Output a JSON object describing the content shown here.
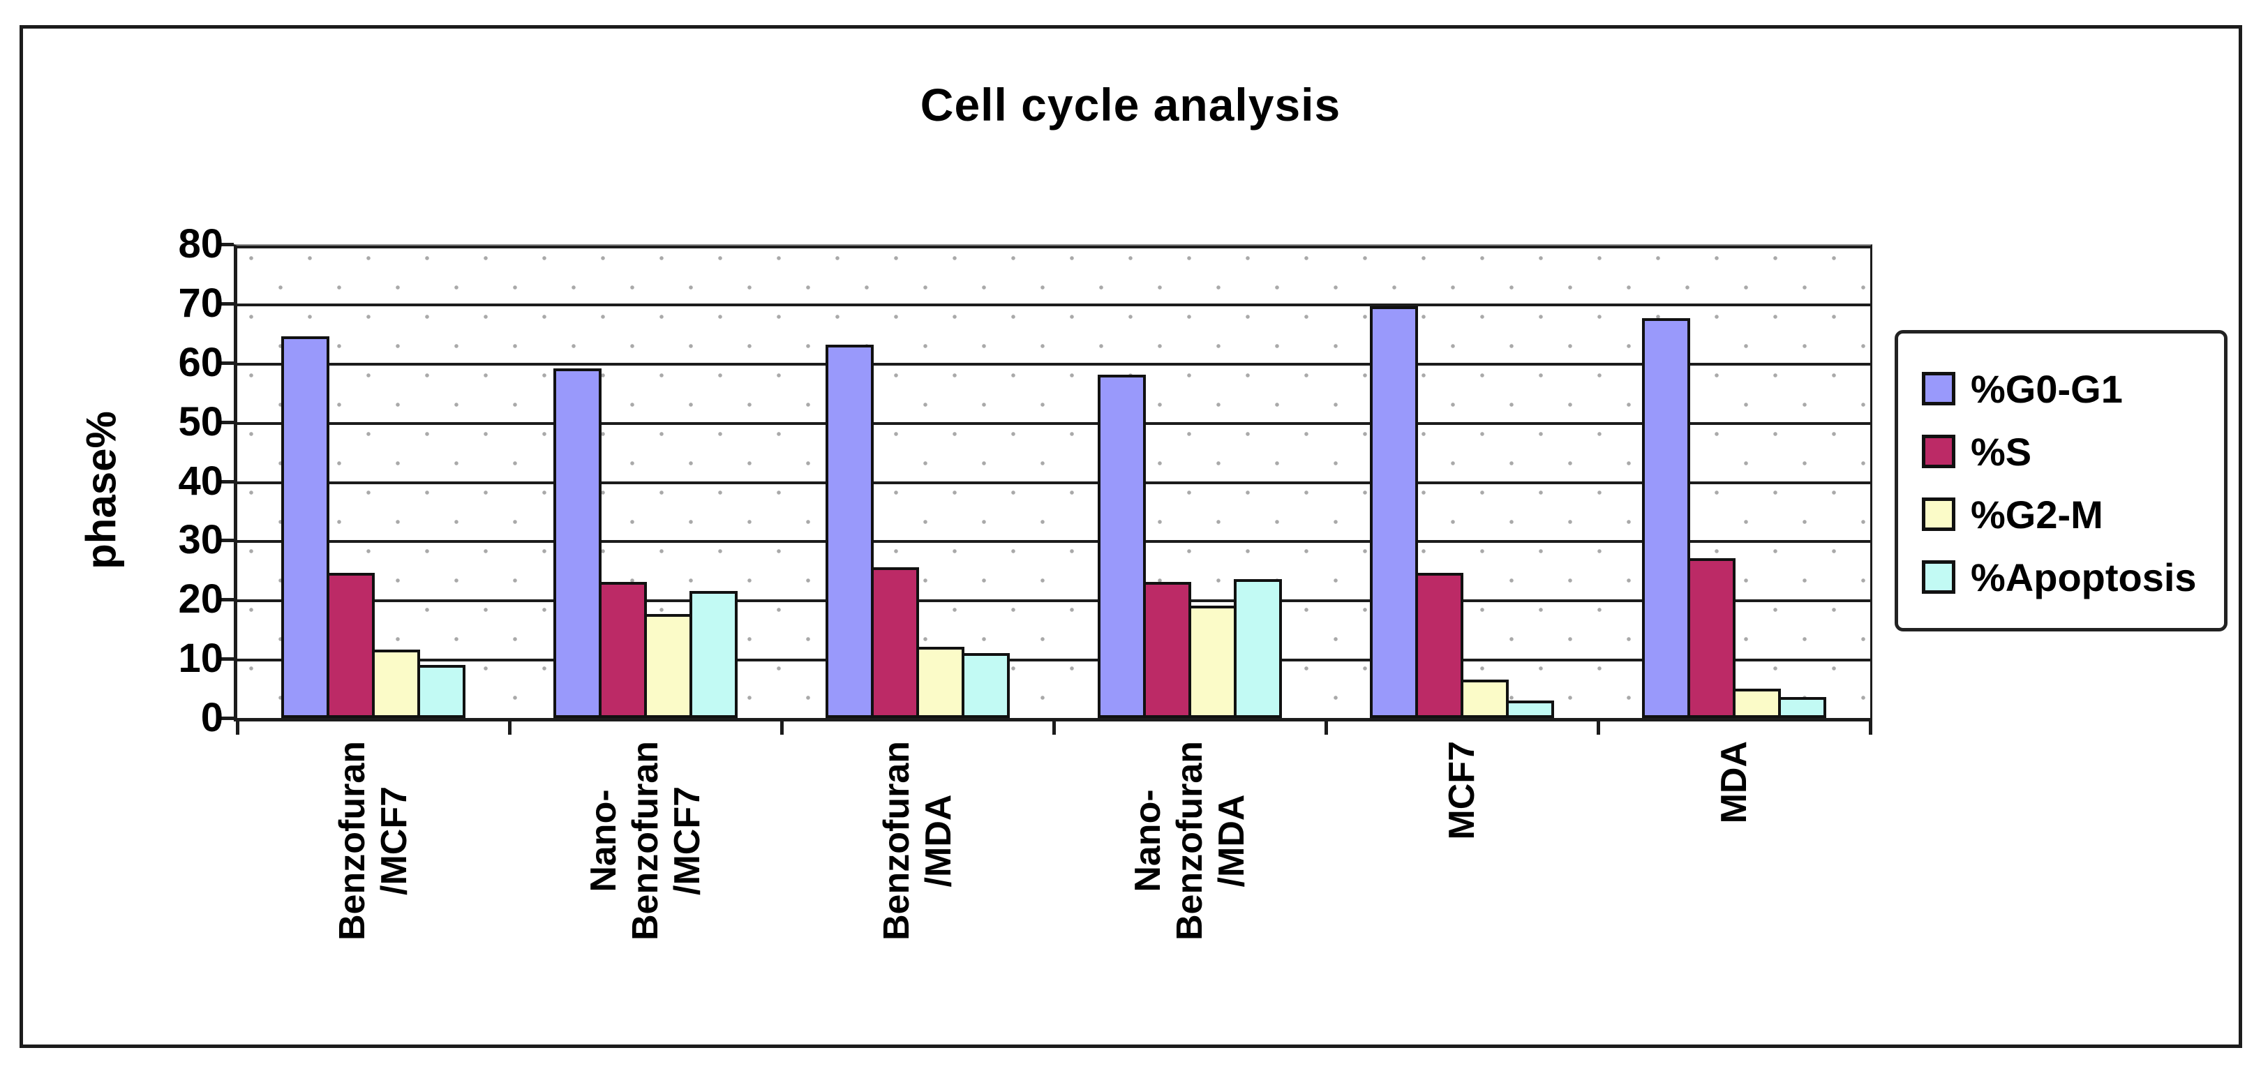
{
  "chart": {
    "title": "Cell cycle analysis",
    "y_axis_title": "phase%"
  },
  "chart_data": {
    "type": "bar",
    "title": "Cell cycle analysis",
    "xlabel": "",
    "ylabel": "phase%",
    "ylim": [
      0,
      80
    ],
    "ytick_step": 10,
    "ytick_labels": [
      "0",
      "10",
      "20",
      "30",
      "40",
      "50",
      "60",
      "70",
      "80"
    ],
    "grid": "horizontal black gridlines on dotted pattern background",
    "legend_position": "right",
    "categories": [
      "Benzofuran /MCF7",
      "Nano- Benzofuran /MCF7",
      "Benzofuran /MDA",
      "Nano- Benzofuran /MDA",
      "MCF7",
      "MDA"
    ],
    "category_label_lines": [
      [
        "Benzofuran",
        "/MCF7"
      ],
      [
        "Nano-",
        "Benzofuran",
        "/MCF7"
      ],
      [
        "Benzofuran",
        "/MDA"
      ],
      [
        "Nano-",
        "Benzofuran",
        "/MDA"
      ],
      [
        "MCF7"
      ],
      [
        "MDA"
      ]
    ],
    "series": [
      {
        "name": "%G0-G1",
        "color": "#9999FB",
        "values": [
          64.5,
          59.0,
          63.0,
          58.0,
          69.5,
          67.5
        ]
      },
      {
        "name": "%S",
        "color": "#BC2A66",
        "values": [
          24.5,
          23.0,
          25.5,
          23.0,
          24.5,
          27.0
        ]
      },
      {
        "name": "%G2-M",
        "color": "#FBFBC8",
        "values": [
          11.5,
          17.5,
          12.0,
          19.0,
          6.5,
          5.0
        ]
      },
      {
        "name": "%Apoptosis",
        "color": "#C2FAF4",
        "values": [
          9.0,
          21.5,
          11.0,
          23.5,
          3.0,
          3.5
        ]
      }
    ]
  }
}
